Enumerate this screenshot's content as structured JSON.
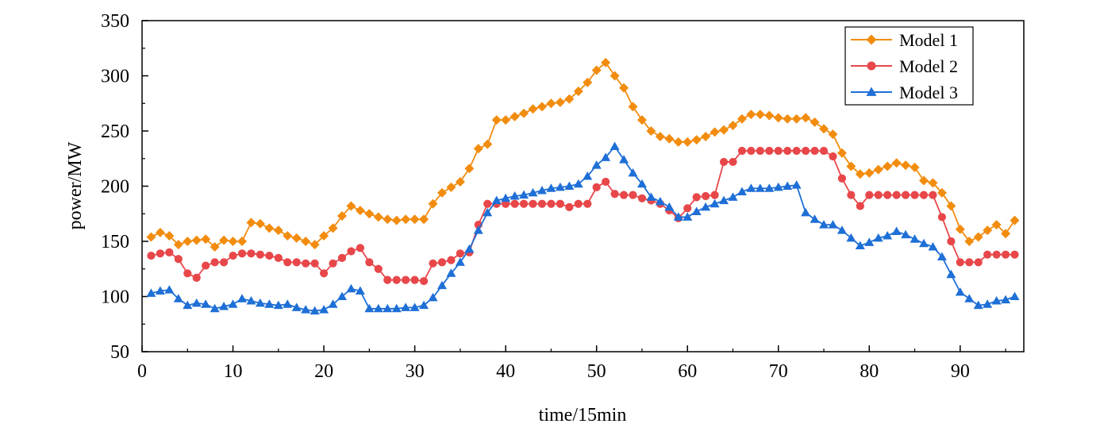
{
  "chart_data": {
    "type": "line",
    "title": "",
    "xlabel": "time/15min",
    "ylabel": "power/MW",
    "xlim": [
      0,
      97
    ],
    "ylim": [
      50,
      350
    ],
    "xticks": [
      0,
      10,
      20,
      30,
      40,
      50,
      60,
      70,
      80,
      90
    ],
    "yticks": [
      50,
      100,
      150,
      200,
      250,
      300,
      350
    ],
    "grid": false,
    "legend_position": "top-right",
    "series": [
      {
        "name": "Model 1",
        "color": "#F28C0F",
        "marker": "diamond",
        "x": [
          1,
          2,
          3,
          4,
          5,
          6,
          7,
          8,
          9,
          10,
          11,
          12,
          13,
          14,
          15,
          16,
          17,
          18,
          19,
          20,
          21,
          22,
          23,
          24,
          25,
          26,
          27,
          28,
          29,
          30,
          31,
          32,
          33,
          34,
          35,
          36,
          37,
          38,
          39,
          40,
          41,
          42,
          43,
          44,
          45,
          46,
          47,
          48,
          49,
          50,
          51,
          52,
          53,
          54,
          55,
          56,
          57,
          58,
          59,
          60,
          61,
          62,
          63,
          64,
          65,
          66,
          67,
          68,
          69,
          70,
          71,
          72,
          73,
          74,
          75,
          76,
          77,
          78,
          79,
          80,
          81,
          82,
          83,
          84,
          85,
          86,
          87,
          88,
          89,
          90,
          91,
          92,
          93,
          94,
          95,
          96
        ],
        "values": [
          154,
          158,
          155,
          147,
          150,
          151,
          152,
          145,
          151,
          150,
          150,
          167,
          166,
          162,
          160,
          155,
          153,
          150,
          147,
          155,
          162,
          173,
          182,
          178,
          175,
          172,
          170,
          169,
          170,
          170,
          170,
          184,
          194,
          199,
          204,
          216,
          234,
          238,
          260,
          260,
          263,
          266,
          270,
          272,
          275,
          276,
          279,
          286,
          294,
          305,
          312,
          300,
          289,
          272,
          260,
          250,
          245,
          243,
          240,
          240,
          242,
          245,
          249,
          251,
          255,
          261,
          265,
          265,
          264,
          262,
          261,
          261,
          262,
          258,
          252,
          247,
          230,
          218,
          211,
          212,
          215,
          218,
          221,
          219,
          217,
          205,
          203,
          194,
          182,
          161,
          150,
          154,
          160,
          165,
          157,
          169
        ]
      },
      {
        "name": "Model 2",
        "color": "#E8474A",
        "marker": "circle",
        "x": [
          1,
          2,
          3,
          4,
          5,
          6,
          7,
          8,
          9,
          10,
          11,
          12,
          13,
          14,
          15,
          16,
          17,
          18,
          19,
          20,
          21,
          22,
          23,
          24,
          25,
          26,
          27,
          28,
          29,
          30,
          31,
          32,
          33,
          34,
          35,
          36,
          37,
          38,
          39,
          40,
          41,
          42,
          43,
          44,
          45,
          46,
          47,
          48,
          49,
          50,
          51,
          52,
          53,
          54,
          55,
          56,
          57,
          58,
          59,
          60,
          61,
          62,
          63,
          64,
          65,
          66,
          67,
          68,
          69,
          70,
          71,
          72,
          73,
          74,
          75,
          76,
          77,
          78,
          79,
          80,
          81,
          82,
          83,
          84,
          85,
          86,
          87,
          88,
          89,
          90,
          91,
          92,
          93,
          94,
          95,
          96
        ],
        "values": [
          137,
          139,
          140,
          134,
          121,
          117,
          128,
          131,
          131,
          137,
          139,
          139,
          138,
          137,
          135,
          131,
          131,
          130,
          130,
          121,
          130,
          135,
          141,
          144,
          131,
          125,
          115,
          115,
          115,
          115,
          114,
          130,
          131,
          133,
          139,
          140,
          165,
          184,
          184,
          184,
          184,
          184,
          184,
          184,
          184,
          184,
          181,
          184,
          184,
          199,
          204,
          193,
          192,
          192,
          189,
          187,
          184,
          178,
          171,
          180,
          190,
          191,
          192,
          222,
          222,
          232,
          232,
          232,
          232,
          232,
          232,
          232,
          232,
          232,
          232,
          227,
          207,
          192,
          182,
          192,
          192,
          192,
          192,
          192,
          192,
          192,
          192,
          172,
          150,
          131,
          131,
          131,
          138,
          138,
          138,
          138
        ]
      },
      {
        "name": "Model 3",
        "color": "#1E6FD6",
        "marker": "triangle",
        "x": [
          1,
          2,
          3,
          4,
          5,
          6,
          7,
          8,
          9,
          10,
          11,
          12,
          13,
          14,
          15,
          16,
          17,
          18,
          19,
          20,
          21,
          22,
          23,
          24,
          25,
          26,
          27,
          28,
          29,
          30,
          31,
          32,
          33,
          34,
          35,
          36,
          37,
          38,
          39,
          40,
          41,
          42,
          43,
          44,
          45,
          46,
          47,
          48,
          49,
          50,
          51,
          52,
          53,
          54,
          55,
          56,
          57,
          58,
          59,
          60,
          61,
          62,
          63,
          64,
          65,
          66,
          67,
          68,
          69,
          70,
          71,
          72,
          73,
          74,
          75,
          76,
          77,
          78,
          79,
          80,
          81,
          82,
          83,
          84,
          85,
          86,
          87,
          88,
          89,
          90,
          91,
          92,
          93,
          94,
          95,
          96
        ],
        "values": [
          103,
          105,
          106,
          98,
          92,
          94,
          93,
          89,
          91,
          93,
          98,
          96,
          94,
          93,
          92,
          93,
          90,
          88,
          87,
          88,
          93,
          100,
          107,
          105,
          89,
          89,
          89,
          89,
          90,
          90,
          92,
          99,
          110,
          121,
          131,
          143,
          160,
          176,
          187,
          189,
          191,
          192,
          194,
          196,
          198,
          199,
          200,
          202,
          209,
          219,
          226,
          236,
          224,
          212,
          202,
          190,
          186,
          181,
          172,
          172,
          177,
          181,
          184,
          187,
          190,
          195,
          198,
          198,
          198,
          199,
          200,
          201,
          176,
          170,
          165,
          165,
          160,
          153,
          146,
          149,
          153,
          155,
          159,
          156,
          152,
          148,
          145,
          136,
          120,
          104,
          98,
          92,
          93,
          96,
          97,
          100
        ]
      }
    ],
    "legend": [
      "Model 1",
      "Model 2",
      "Model 3"
    ]
  }
}
